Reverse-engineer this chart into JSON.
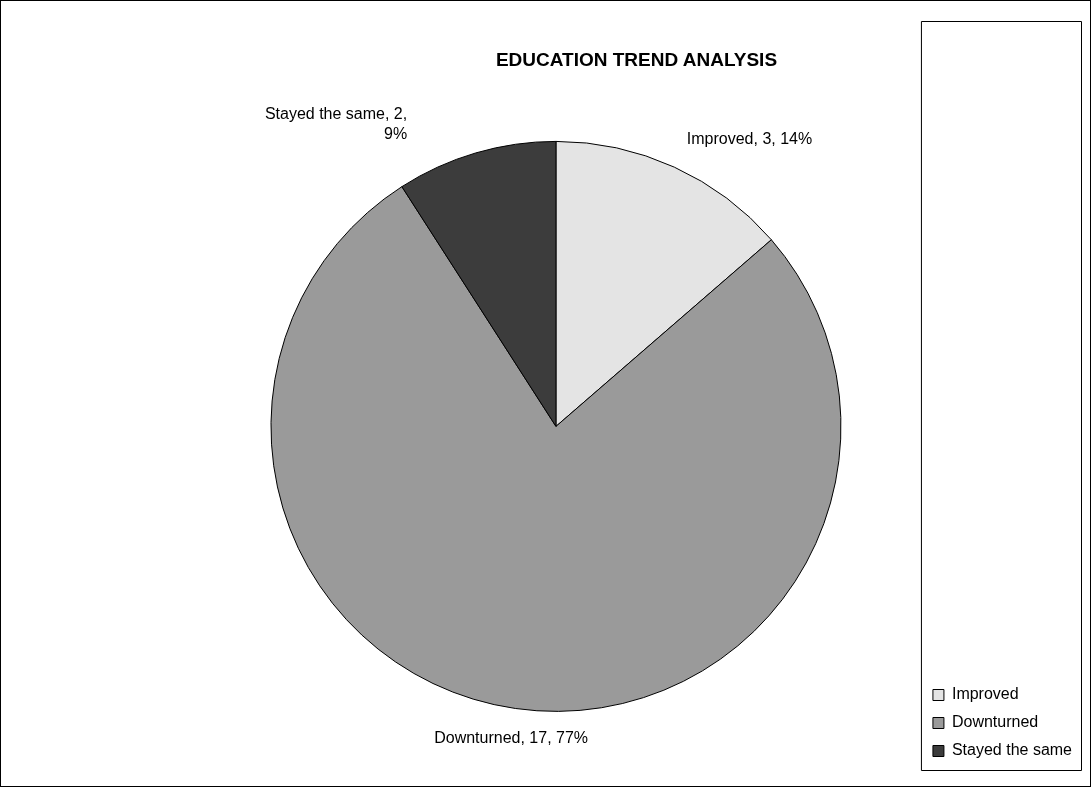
{
  "chart_data": {
    "type": "pie",
    "title": "EDUCATION TREND ANALYSIS",
    "categories": [
      "Improved",
      "Downturned",
      "Stayed the same"
    ],
    "values": [
      3,
      17,
      2
    ],
    "colors": [
      "#e4e4e4",
      "#9a9a9a",
      "#3c3c3c"
    ],
    "value_labels": [
      "Improved, 3, 14%",
      "Downturned, 17, 77%",
      "Stayed the same, 2, 9%"
    ],
    "legend": "bottom right"
  }
}
